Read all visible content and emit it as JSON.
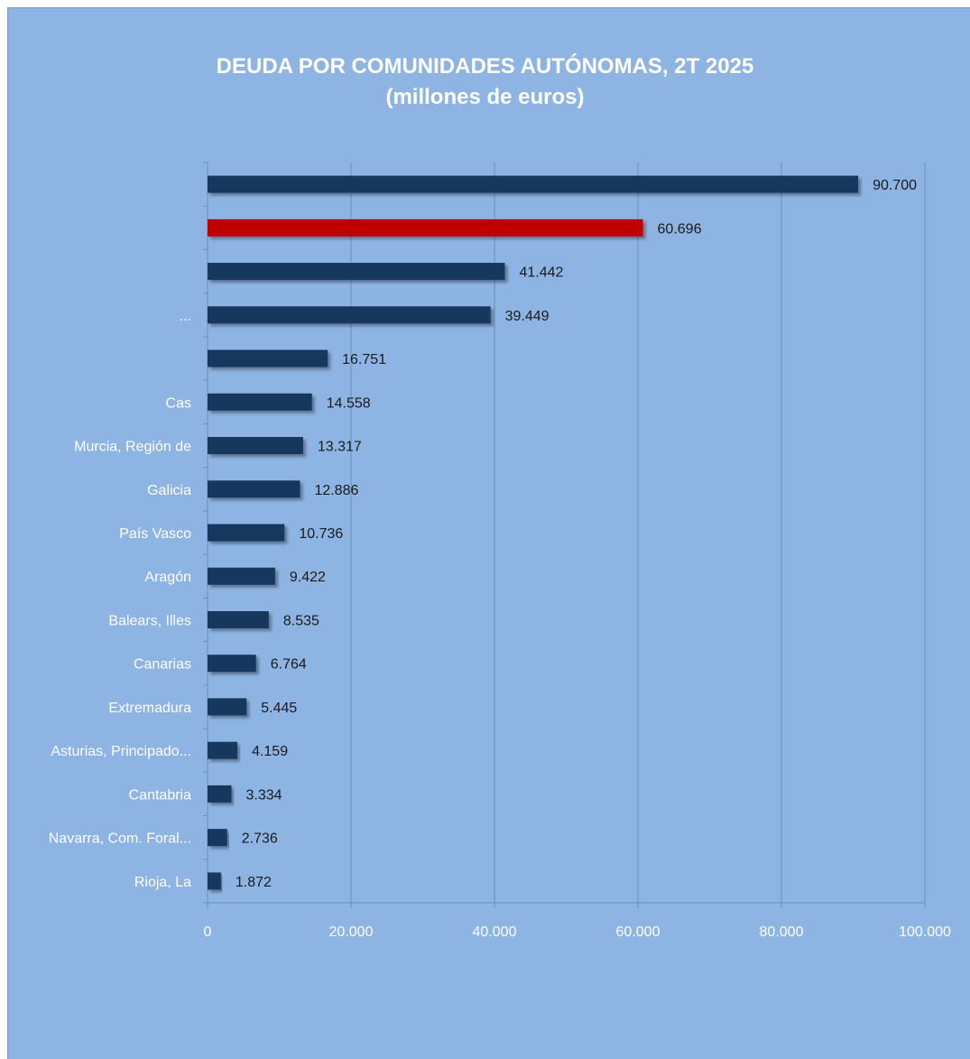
{
  "chart_data": {
    "type": "bar",
    "orientation": "horizontal",
    "title": "DEUDA POR COMUNIDADES AUTÓNOMAS, 2T 2025",
    "subtitle": "(millones de euros)",
    "categories": [
      "",
      "",
      "",
      "...",
      "",
      "Cas",
      "Murcia, Región de",
      "Galicia",
      "País Vasco",
      "Aragón",
      "Balears, Illes",
      "Canarias",
      "Extremadura",
      "Asturias, Principado...",
      "Cantabria",
      "Navarra, Com. Foral...",
      "Rioja, La"
    ],
    "values": [
      90700,
      60696,
      41442,
      39449,
      16751,
      14558,
      13317,
      12886,
      10736,
      9422,
      8535,
      6764,
      5445,
      4159,
      3334,
      2736,
      1872
    ],
    "data_labels": [
      "90.700",
      "60.696",
      "41.442",
      "39.449",
      "16.751",
      "14.558",
      "13.317",
      "12.886",
      "10.736",
      "9.422",
      "8.535",
      "6.764",
      "5.445",
      "4.159",
      "3.334",
      "2.736",
      "1.872"
    ],
    "highlight_index": 1,
    "xlim": [
      0,
      100000
    ],
    "xticks": [
      0,
      20000,
      40000,
      60000,
      80000,
      100000
    ],
    "xtick_labels": [
      "0",
      "20.000",
      "40.000",
      "60.000",
      "80.000",
      "100.000"
    ],
    "grid": "vertical",
    "legend": "none",
    "colors": {
      "background": "#8eb4e3",
      "bar": "#17375e",
      "highlight": "#c00000",
      "grid": "#6f8fb8",
      "text": "#ffffff",
      "data_label": "#1a1a1a"
    }
  }
}
